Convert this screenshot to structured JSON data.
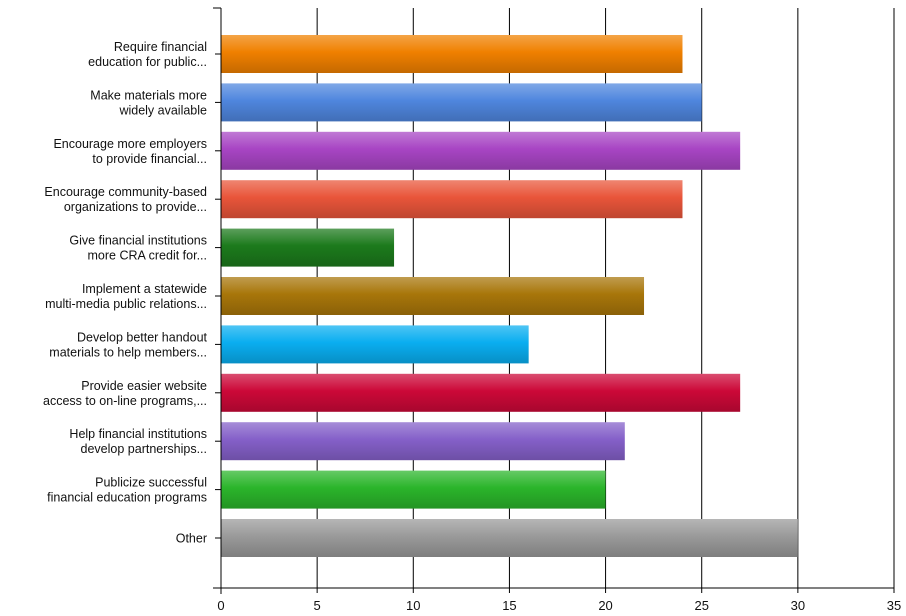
{
  "chart_data": {
    "type": "bar",
    "orientation": "horizontal",
    "title": "",
    "xlabel": "",
    "ylabel": "",
    "xlim": [
      0,
      35
    ],
    "x_ticks": [
      0,
      5,
      10,
      15,
      20,
      25,
      30,
      35
    ],
    "grid": "vertical",
    "legend": "none",
    "categories": [
      {
        "label_lines": [
          "Require financial",
          "education for public..."
        ],
        "value": 24,
        "color": "#f08000"
      },
      {
        "label_lines": [
          "Make materials more",
          "widely available"
        ],
        "value": 25,
        "color": "#4f86de"
      },
      {
        "label_lines": [
          "Encourage more employers",
          "to provide financial..."
        ],
        "value": 27,
        "color": "#a845c4"
      },
      {
        "label_lines": [
          "Encourage community-based",
          "organizations to provide..."
        ],
        "value": 24,
        "color": "#e9553a"
      },
      {
        "label_lines": [
          "Give financial institutions",
          "more CRA credit for..."
        ],
        "value": 9,
        "color": "#1c7a1c"
      },
      {
        "label_lines": [
          "Implement a statewide",
          "multi-media public relations..."
        ],
        "value": 22,
        "color": "#a8760a"
      },
      {
        "label_lines": [
          "Develop better handout",
          "materials to help members..."
        ],
        "value": 16,
        "color": "#0aaef0"
      },
      {
        "label_lines": [
          "Provide easier website",
          "access to on-line programs,..."
        ],
        "value": 27,
        "color": "#cc0838"
      },
      {
        "label_lines": [
          "Help financial institutions",
          "develop partnerships..."
        ],
        "value": 21,
        "color": "#8560c9"
      },
      {
        "label_lines": [
          "Publicize successful",
          "financial education programs"
        ],
        "value": 20,
        "color": "#2bb52b"
      },
      {
        "label_lines": [
          "Other"
        ],
        "value": 30,
        "color": "#9a9a9a"
      }
    ]
  }
}
